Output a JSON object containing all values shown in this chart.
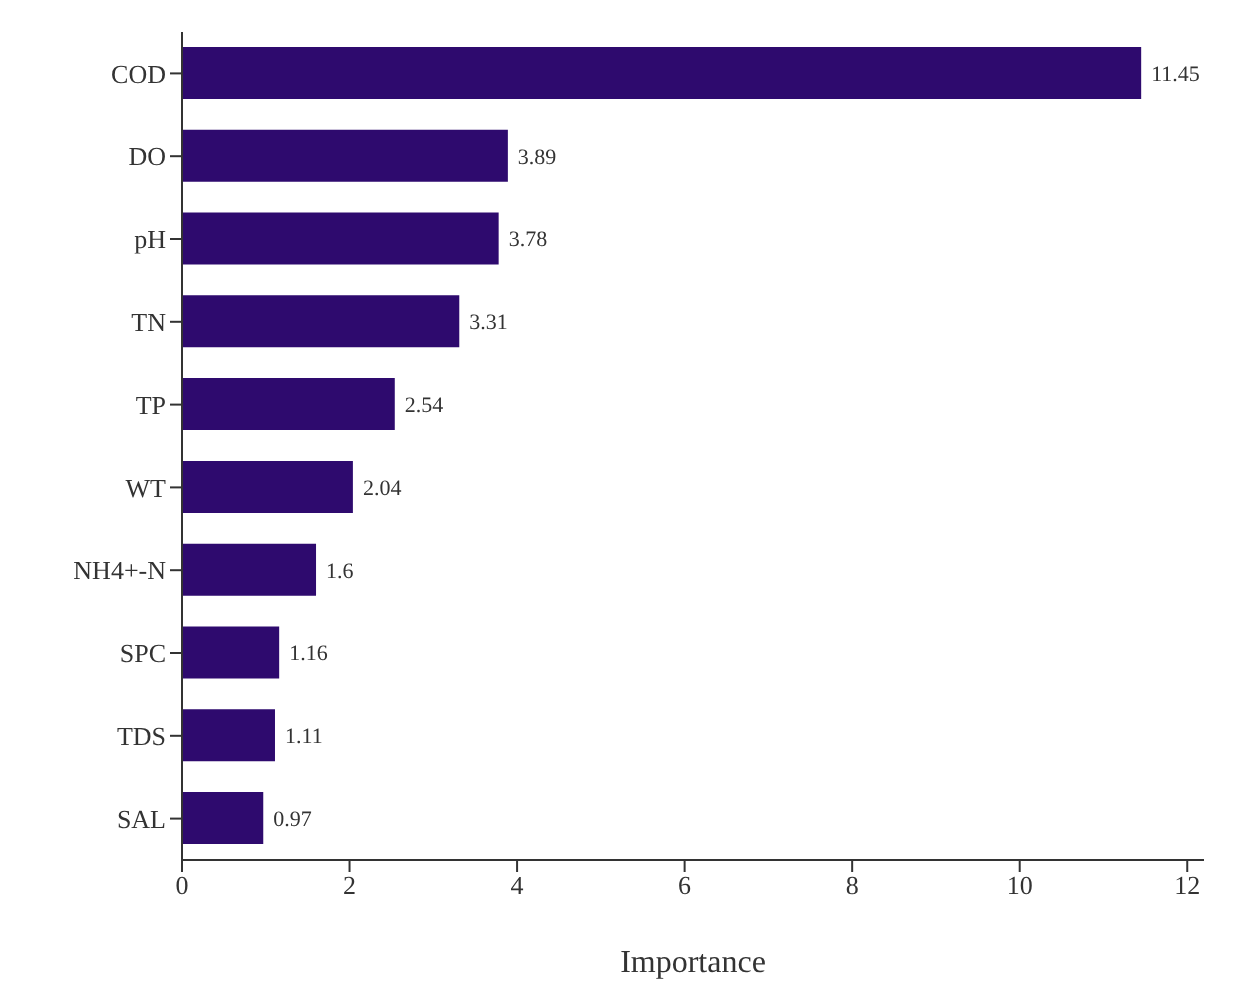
{
  "chart_data": {
    "type": "bar",
    "orientation": "horizontal",
    "xlabel": "Importance",
    "categories": [
      "COD",
      "DO",
      "pH",
      "TN",
      "TP",
      "WT",
      "NH4+-N",
      "SPC",
      "TDS",
      "SAL"
    ],
    "values": [
      11.45,
      3.89,
      3.78,
      3.31,
      2.54,
      2.04,
      1.6,
      1.16,
      1.11,
      0.97
    ],
    "color": "#2e0a6e",
    "xlim": [
      0,
      12.2
    ],
    "xticks": [
      0,
      2,
      4,
      6,
      8,
      10,
      12
    ],
    "data_labels": true
  }
}
